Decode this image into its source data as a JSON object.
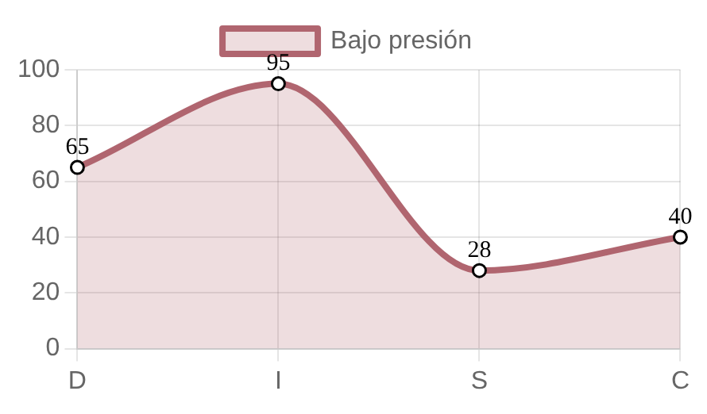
{
  "chart_data": {
    "type": "area",
    "categories": [
      "D",
      "I",
      "S",
      "C"
    ],
    "series": [
      {
        "name": "Bajo presión",
        "color": "#b0656f",
        "values": [
          65,
          95,
          28,
          40
        ]
      }
    ],
    "ylim": [
      0,
      100
    ],
    "yticks": [
      0,
      20,
      40,
      60,
      80,
      100
    ],
    "grid": true,
    "legend": "top",
    "marker": "circle",
    "data_labels": true
  }
}
